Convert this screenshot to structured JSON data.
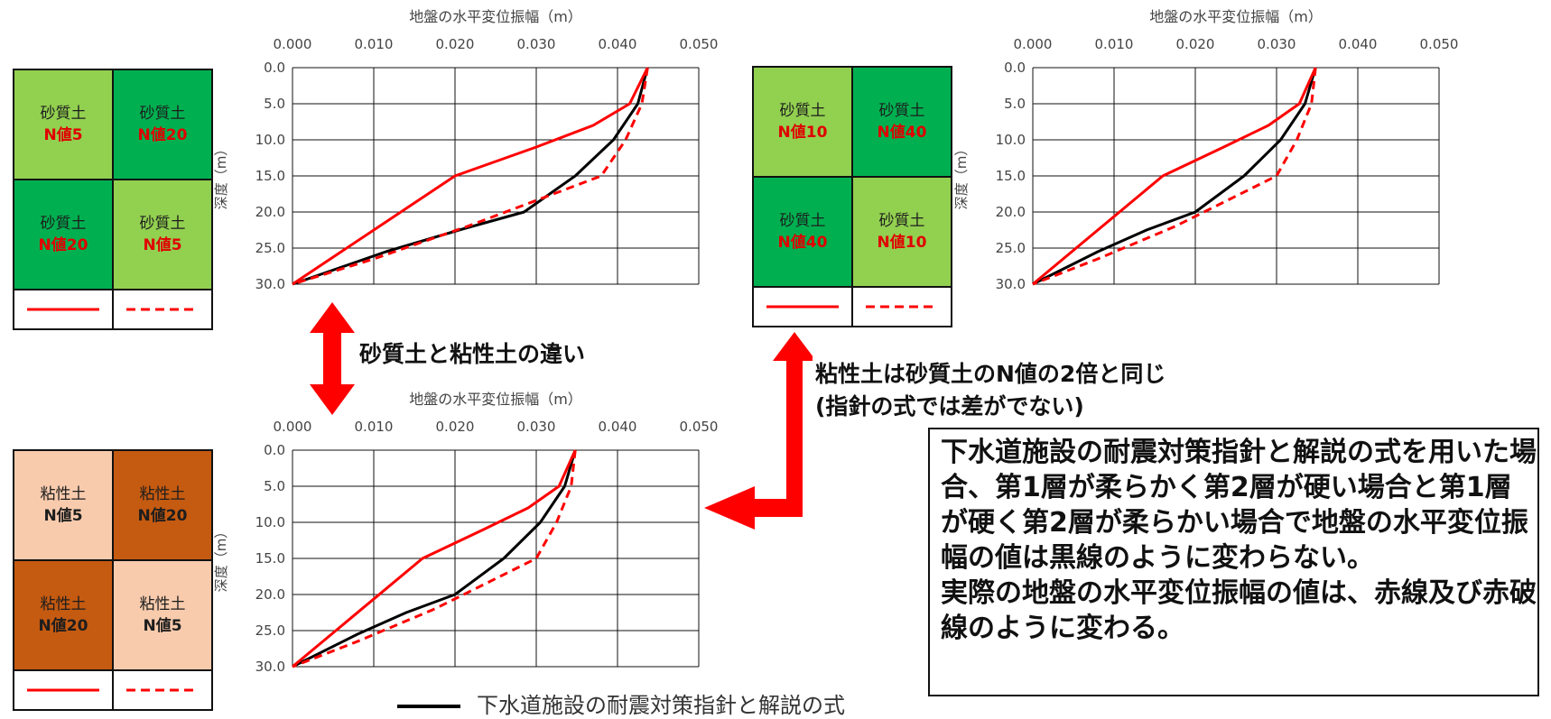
{
  "colors": {
    "guideline": "#000000",
    "actual": "#ff0000",
    "sand_soft": "#92d050",
    "sand_stiff": "#00b050",
    "clay_soft": "#f8cbad",
    "clay_stiff": "#c55a11",
    "arrow": "#ff0000"
  },
  "captions": {
    "sand_vs_clay": "砂質土と粘性土の違い",
    "equivalent_line1": "粘性土は砂質土のN値の2倍と同じ",
    "equivalent_line2": "(指針の式では差がでない)"
  },
  "explanation": {
    "text": "下水道施設の耐震対策指針と解説の式を用いた場合、第1層が柔らかく第2層が硬い場合と第1層が硬く第2層が柔らかい場合で地盤の水平変位振幅の値は黒線のように変わらない。\n実際の地盤の水平変位振幅の値は、赤線及び赤破線のように変わる。"
  },
  "footer_legend": {
    "label": "下水道施設の耐震対策指針と解説の式"
  },
  "legends": [
    {
      "cells": [
        {
          "soil": "砂質土",
          "n": "N値5",
          "fill": "#92d050",
          "kind": "sand"
        },
        {
          "soil": "砂質土",
          "n": "N値20",
          "fill": "#00b050",
          "kind": "sand"
        },
        {
          "soil": "砂質土",
          "n": "N値20",
          "fill": "#00b050",
          "kind": "sand"
        },
        {
          "soil": "砂質土",
          "n": "N値5",
          "fill": "#92d050",
          "kind": "sand"
        }
      ]
    },
    {
      "cells": [
        {
          "soil": "砂質土",
          "n": "N値10",
          "fill": "#92d050",
          "kind": "sand"
        },
        {
          "soil": "砂質土",
          "n": "N値40",
          "fill": "#00b050",
          "kind": "sand"
        },
        {
          "soil": "砂質土",
          "n": "N値40",
          "fill": "#00b050",
          "kind": "sand"
        },
        {
          "soil": "砂質土",
          "n": "N値10",
          "fill": "#92d050",
          "kind": "sand"
        }
      ]
    },
    {
      "cells": [
        {
          "soil": "粘性土",
          "n": "N値5",
          "fill": "#f8cbad",
          "kind": "clay"
        },
        {
          "soil": "粘性土",
          "n": "N値20",
          "fill": "#c55a11",
          "kind": "clay"
        },
        {
          "soil": "粘性土",
          "n": "N値20",
          "fill": "#c55a11",
          "kind": "clay"
        },
        {
          "soil": "粘性土",
          "n": "N値5",
          "fill": "#f8cbad",
          "kind": "clay"
        }
      ]
    }
  ],
  "chart_data": [
    {
      "type": "line",
      "title": "地盤の水平変位振幅（m）",
      "ylabel": "深度（m）",
      "xlim": [
        0,
        0.05
      ],
      "ylim": [
        0,
        30
      ],
      "y_inverted": true,
      "x_axis_position": "top",
      "grid": true,
      "xticks": [
        "0.000",
        "0.010",
        "0.020",
        "0.030",
        "0.040",
        "0.050"
      ],
      "yticks": [
        "0.0",
        "5.0",
        "10.0",
        "15.0",
        "20.0",
        "25.0",
        "30.0"
      ],
      "series": [
        {
          "style": "solid",
          "color": "#000000",
          "x": [
            0.0437,
            0.0425,
            0.0395,
            0.0348,
            0.0285,
            0.0205,
            0.0115,
            0.0
          ],
          "y": [
            0,
            5,
            10,
            15,
            20,
            22.5,
            25.5,
            30
          ]
        },
        {
          "style": "solid",
          "color": "#ff0000",
          "x": [
            0.0437,
            0.0415,
            0.037,
            0.03,
            0.02,
            0.0
          ],
          "y": [
            0,
            5,
            8,
            11,
            15,
            30
          ]
        },
        {
          "style": "dashed",
          "color": "#ff0000",
          "x": [
            0.0437,
            0.043,
            0.041,
            0.038,
            0.0215,
            0.01,
            0.0
          ],
          "y": [
            0,
            5,
            10,
            15,
            22,
            26.5,
            30
          ]
        }
      ]
    },
    {
      "type": "line",
      "title": "地盤の水平変位振幅（m）",
      "ylabel": "深度（m）",
      "xlim": [
        0,
        0.05
      ],
      "ylim": [
        0,
        30
      ],
      "y_inverted": true,
      "x_axis_position": "top",
      "grid": true,
      "xticks": [
        "0.000",
        "0.010",
        "0.020",
        "0.030",
        "0.040",
        "0.050"
      ],
      "yticks": [
        "0.0",
        "5.0",
        "10.0",
        "15.0",
        "20.0",
        "25.0",
        "30.0"
      ],
      "series": [
        {
          "style": "solid",
          "color": "#000000",
          "x": [
            0.0348,
            0.0335,
            0.0305,
            0.026,
            0.02,
            0.014,
            0.008,
            0.0
          ],
          "y": [
            0,
            5,
            10,
            15,
            20,
            22.5,
            25.5,
            30
          ]
        },
        {
          "style": "solid",
          "color": "#ff0000",
          "x": [
            0.0348,
            0.0328,
            0.029,
            0.0235,
            0.016,
            0.0
          ],
          "y": [
            0,
            5,
            8,
            11,
            15,
            30
          ]
        },
        {
          "style": "dashed",
          "color": "#ff0000",
          "x": [
            0.0348,
            0.0343,
            0.0325,
            0.03,
            0.0175,
            0.008,
            0.0
          ],
          "y": [
            0,
            5,
            10,
            15,
            22,
            26.5,
            30
          ]
        }
      ]
    },
    {
      "type": "line",
      "title": "地盤の水平変位振幅（m）",
      "ylabel": "深度（m）",
      "xlim": [
        0,
        0.05
      ],
      "ylim": [
        0,
        30
      ],
      "y_inverted": true,
      "x_axis_position": "top",
      "grid": true,
      "xticks": [
        "0.000",
        "0.010",
        "0.020",
        "0.030",
        "0.040",
        "0.050"
      ],
      "yticks": [
        "0.0",
        "5.0",
        "10.0",
        "15.0",
        "20.0",
        "25.0",
        "30.0"
      ],
      "series": [
        {
          "style": "solid",
          "color": "#000000",
          "x": [
            0.0348,
            0.0335,
            0.0305,
            0.026,
            0.02,
            0.014,
            0.008,
            0.0
          ],
          "y": [
            0,
            5,
            10,
            15,
            20,
            22.5,
            25.5,
            30
          ]
        },
        {
          "style": "solid",
          "color": "#ff0000",
          "x": [
            0.0348,
            0.0328,
            0.029,
            0.0235,
            0.016,
            0.0
          ],
          "y": [
            0,
            5,
            8,
            11,
            15,
            30
          ]
        },
        {
          "style": "dashed",
          "color": "#ff0000",
          "x": [
            0.0348,
            0.0343,
            0.0325,
            0.03,
            0.0175,
            0.008,
            0.0
          ],
          "y": [
            0,
            5,
            10,
            15,
            22,
            26.5,
            30
          ]
        }
      ]
    }
  ]
}
